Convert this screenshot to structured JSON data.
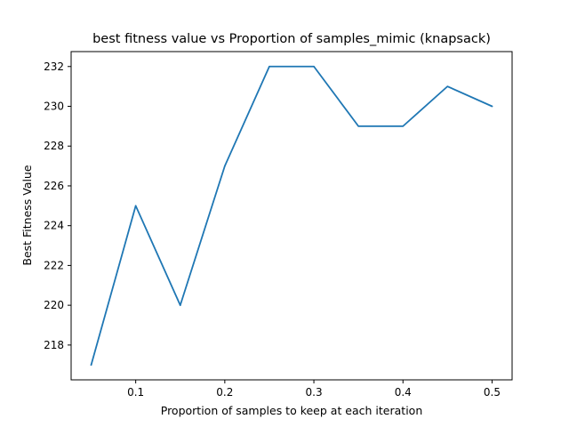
{
  "chart_data": {
    "type": "line",
    "title": "best fitness value vs Proportion of samples_mimic (knapsack)",
    "xlabel": "Proportion of samples to keep at each iteration",
    "ylabel": "Best Fitness Value",
    "x": [
      0.05,
      0.1,
      0.15,
      0.2,
      0.25,
      0.3,
      0.35,
      0.4,
      0.45,
      0.5
    ],
    "series": [
      {
        "values": [
          217,
          225,
          220,
          227,
          232,
          232,
          229,
          229,
          231,
          230
        ]
      }
    ],
    "xlim": [
      0.0275,
      0.5225
    ],
    "ylim": [
      216.25,
      232.75
    ],
    "xticks": [
      0.1,
      0.2,
      0.3,
      0.4,
      0.5
    ],
    "xtick_labels": [
      "0.1",
      "0.2",
      "0.3",
      "0.4",
      "0.5"
    ],
    "yticks": [
      218,
      220,
      222,
      224,
      226,
      228,
      230,
      232
    ],
    "ytick_labels": [
      "218",
      "220",
      "222",
      "224",
      "226",
      "228",
      "230",
      "232"
    ],
    "grid": false,
    "line_color": "#1f77b4"
  }
}
